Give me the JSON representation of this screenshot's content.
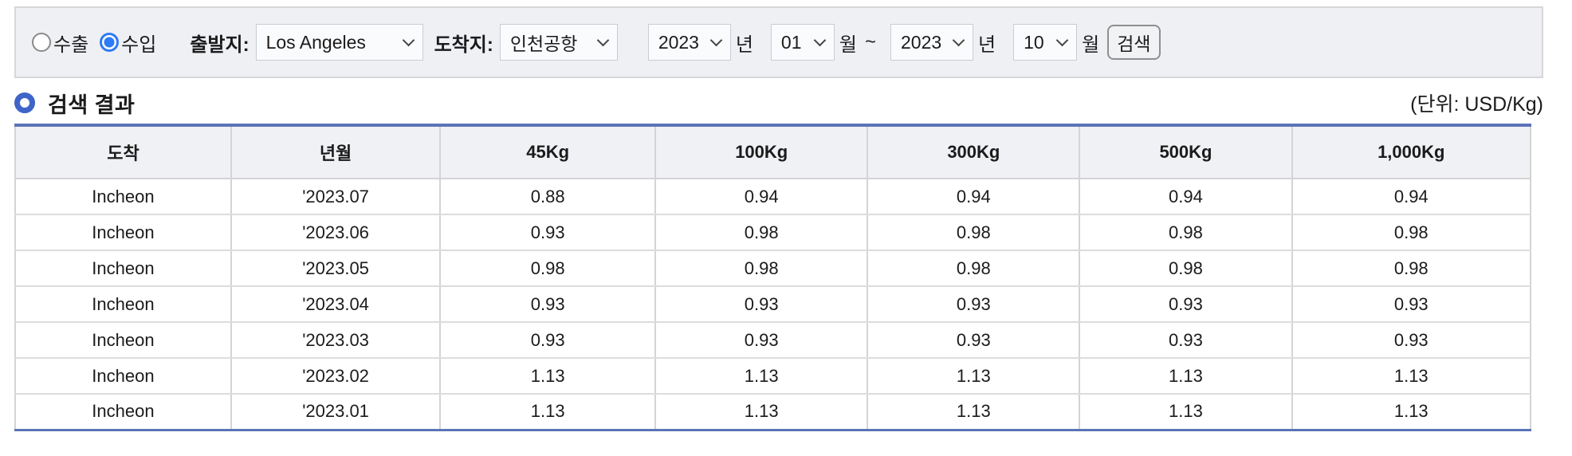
{
  "form": {
    "trade_type": {
      "export_label": "수출",
      "import_label": "수입",
      "selected": "수입"
    },
    "origin": {
      "label": "출발지:",
      "value": "Los Angeles"
    },
    "destination": {
      "label": "도착지:",
      "value": "인천공항"
    },
    "period": {
      "start_year": "2023",
      "year_suffix": "년",
      "start_month": "01",
      "month_suffix": "월",
      "separator": "~",
      "end_year": "2023",
      "end_month": "10"
    },
    "search_button_label": "검색"
  },
  "results": {
    "title": "검색 결과",
    "unit_label": "(단위: USD/Kg)",
    "table": {
      "headers": [
        "도착",
        "년월",
        "45Kg",
        "100Kg",
        "300Kg",
        "500Kg",
        "1,000Kg"
      ],
      "rows": [
        [
          "Incheon",
          "'2023.07",
          "0.88",
          "0.94",
          "0.94",
          "0.94",
          "0.94"
        ],
        [
          "Incheon",
          "'2023.06",
          "0.93",
          "0.98",
          "0.98",
          "0.98",
          "0.98"
        ],
        [
          "Incheon",
          "'2023.05",
          "0.98",
          "0.98",
          "0.98",
          "0.98",
          "0.98"
        ],
        [
          "Incheon",
          "'2023.04",
          "0.93",
          "0.93",
          "0.93",
          "0.93",
          "0.93"
        ],
        [
          "Incheon",
          "'2023.03",
          "0.93",
          "0.93",
          "0.93",
          "0.93",
          "0.93"
        ],
        [
          "Incheon",
          "'2023.02",
          "1.13",
          "1.13",
          "1.13",
          "1.13",
          "1.13"
        ],
        [
          "Incheon",
          "'2023.01",
          "1.13",
          "1.13",
          "1.13",
          "1.13",
          "1.13"
        ]
      ]
    }
  },
  "colors": {
    "table_accent_border": "#5b74b7",
    "radio_selected": "#2e7bf6",
    "title_ring_icon": "#3f64c8",
    "form_bar_background": "#eef0f4",
    "table_header_background": "#f0f1f5"
  }
}
